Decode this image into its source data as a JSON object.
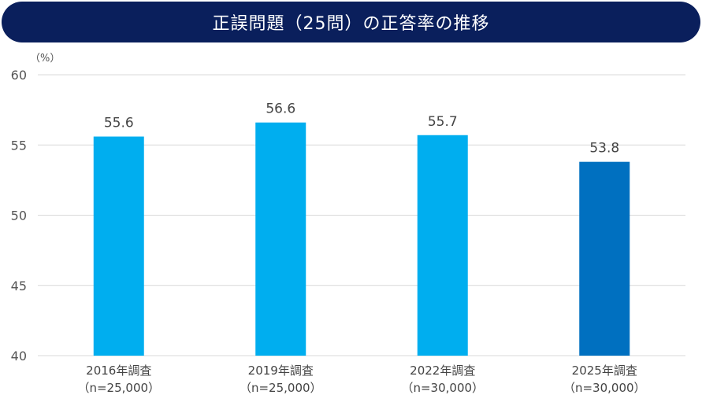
{
  "header": {
    "title": "正誤問題（25問）の正答率の推移"
  },
  "chart_data": {
    "type": "bar",
    "title": "正誤問題（25問）の正答率の推移",
    "unit_label": "（%）",
    "ylim": [
      40,
      60
    ],
    "yticks": [
      40,
      45,
      50,
      55,
      60
    ],
    "grid": true,
    "categories": [
      {
        "year": "2016年調査",
        "n": "（n=25,000）"
      },
      {
        "year": "2019年調査",
        "n": "（n=25,000）"
      },
      {
        "year": "2022年調査",
        "n": "（n=30,000）"
      },
      {
        "year": "2025年調査",
        "n": "（n=30,000）"
      }
    ],
    "values": [
      55.6,
      56.6,
      55.7,
      53.8
    ],
    "value_labels": [
      "55.6",
      "56.6",
      "55.7",
      "53.8"
    ],
    "colors": [
      "#00aeef",
      "#00aeef",
      "#00aeef",
      "#0070c0"
    ]
  }
}
